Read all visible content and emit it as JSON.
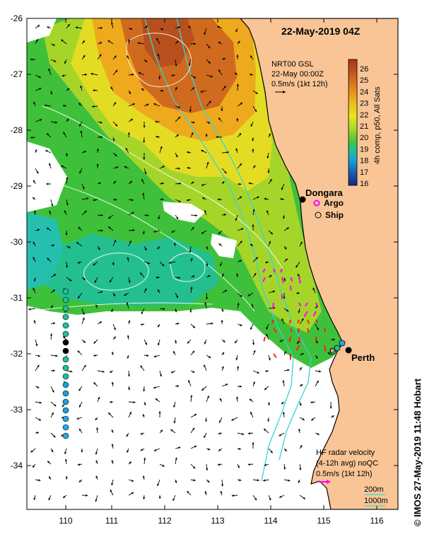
{
  "header": {
    "title": "22-May-2019 04Z"
  },
  "axes": {
    "y_ticks": [
      "-26",
      "-27",
      "-28",
      "-29",
      "-30",
      "-31",
      "-32",
      "-33",
      "-34"
    ],
    "x_ticks": [
      "110",
      "111",
      "112",
      "113",
      "114",
      "115",
      "116"
    ],
    "lon_range": [
      109.2,
      116.9
    ],
    "lat_range": [
      -34.8,
      -26.0
    ]
  },
  "nrt_note": {
    "line1": "NRT00 GSL",
    "line2": "22-May 00:00Z",
    "line3": "0.5m/s (1kt 12h)"
  },
  "colorbar": {
    "label": "4h comp, p50, All Sats",
    "ticks": [
      "26",
      "25",
      "24",
      "23",
      "22",
      "21",
      "20",
      "19",
      "18",
      "17",
      "16"
    ],
    "colors": [
      "#b5471b",
      "#d2661f",
      "#e3941d",
      "#efbd1b",
      "#e6e61e",
      "#a9d82a",
      "#48c637",
      "#1fbf99",
      "#18a0d8",
      "#1b5cb0",
      "#16268a"
    ]
  },
  "places": {
    "dongara": "Dongara",
    "perth": "Perth"
  },
  "legend": {
    "argo": "Argo",
    "ship": "Ship"
  },
  "hf_note": {
    "line1": "HF radar velocity",
    "line2": "(4-12h avg) noQC",
    "line3": "0.5m/s (1kt 12h)"
  },
  "depth_legend": {
    "line1": "200m",
    "line2": "1000m"
  },
  "credit": "© IMOS 27-May-2019 11:48 Hobart",
  "map_colors": {
    "land": "#f9c596",
    "no_data": "#ffffff",
    "coast": "#000000",
    "isobath": "#33d6d6",
    "hf_arrow": "#ff00ff"
  }
}
